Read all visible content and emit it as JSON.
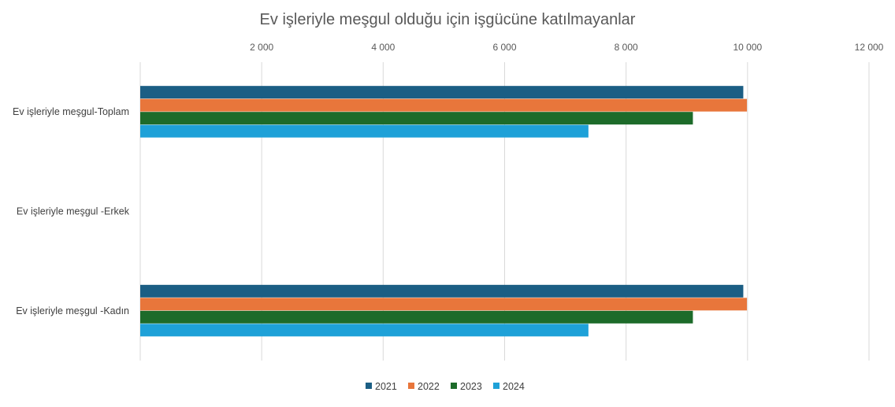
{
  "chart_data": {
    "type": "bar",
    "orientation": "horizontal",
    "title": "Ev işleriyle meşgul olduğu için işgücüne katılmayanlar",
    "categories": [
      "Ev işleriyle meşgul-Toplam",
      "Ev işleriyle meşgul -Erkek",
      "Ev işleriyle meşgul -Kadın"
    ],
    "series": [
      {
        "name": "2021",
        "color": "#1b5e84",
        "values": [
          9930,
          null,
          9930
        ]
      },
      {
        "name": "2022",
        "color": "#e8763b",
        "values": [
          9990,
          null,
          9990
        ]
      },
      {
        "name": "2023",
        "color": "#1d6b2a",
        "values": [
          9100,
          null,
          9100
        ]
      },
      {
        "name": "2024",
        "color": "#1ea1d8",
        "values": [
          7380,
          null,
          7380
        ]
      }
    ],
    "x_ticks": [
      "2 000",
      "4 000",
      "6 000",
      "8 000",
      "10 000",
      "12 000"
    ],
    "x_tick_values": [
      2000,
      4000,
      6000,
      8000,
      10000,
      12000
    ],
    "xlim": [
      0,
      12000
    ],
    "xaxis_position": "top",
    "grid": true,
    "legend_position": "bottom"
  }
}
